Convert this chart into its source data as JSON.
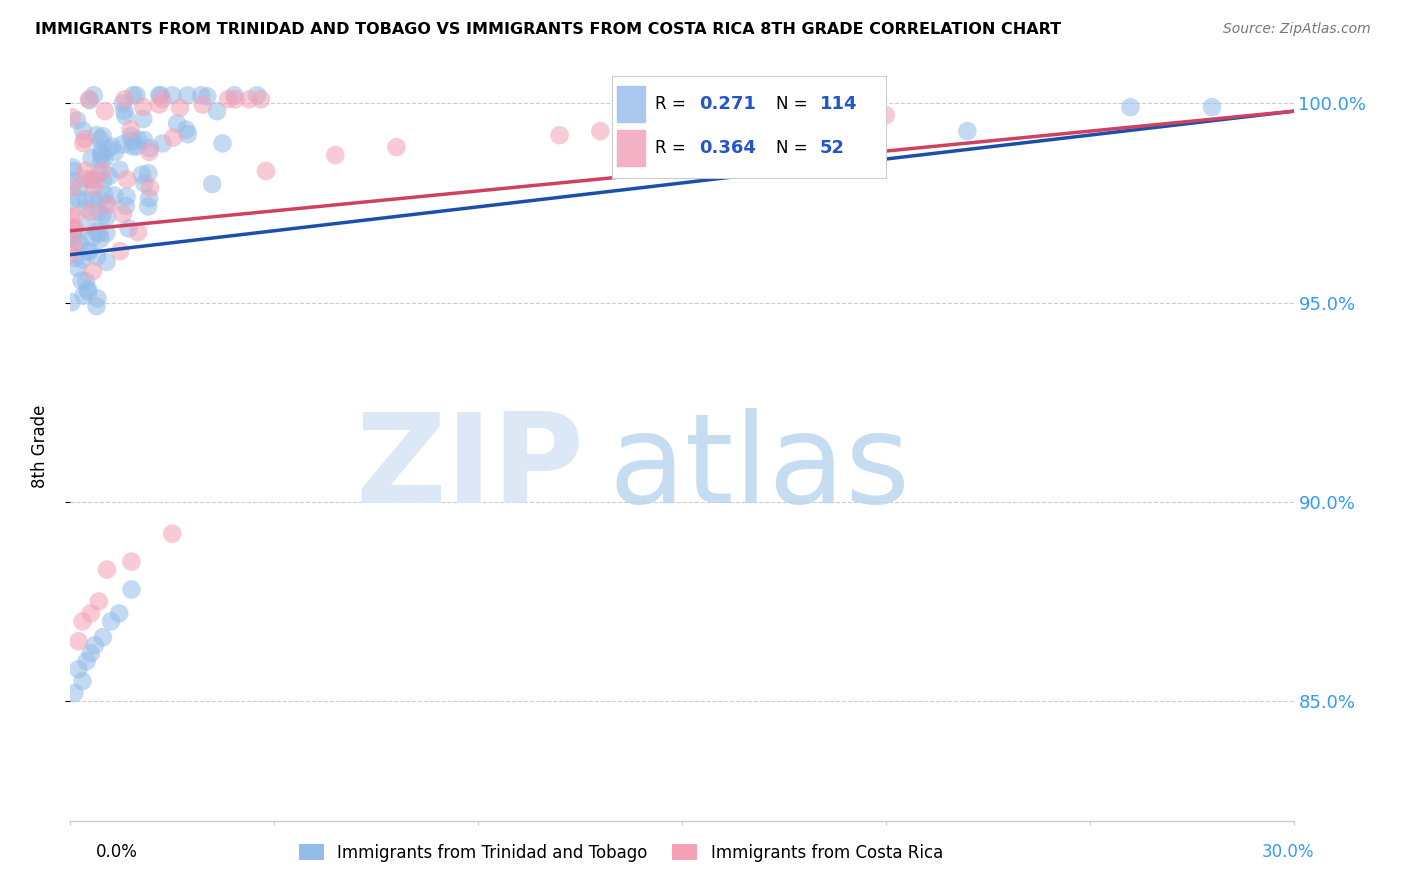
{
  "title": "IMMIGRANTS FROM TRINIDAD AND TOBAGO VS IMMIGRANTS FROM COSTA RICA 8TH GRADE CORRELATION CHART",
  "source": "Source: ZipAtlas.com",
  "ylabel": "8th Grade",
  "y_min": 0.82,
  "y_max": 1.008,
  "x_min": 0.0,
  "x_max": 0.3,
  "series1_label": "Immigrants from Trinidad and Tobago",
  "series2_label": "Immigrants from Costa Rica",
  "series1_color": "#94bce8",
  "series2_color": "#f4a0b5",
  "trendline1_color": "#1a4faa",
  "trendline2_color": "#d04060",
  "grid_color": "#cccccc",
  "y_ticks": [
    0.85,
    0.9,
    0.95,
    1.0
  ],
  "y_tick_labels": [
    "85.0%",
    "90.0%",
    "95.0%",
    "100.0%"
  ],
  "series1_R": "0.271",
  "series1_N": "114",
  "series2_R": "0.364",
  "series2_N": "52",
  "trendline1_x0": 0.0,
  "trendline1_y0": 0.962,
  "trendline1_x1": 0.3,
  "trendline1_y1": 0.998,
  "trendline2_x0": 0.0,
  "trendline2_y0": 0.968,
  "trendline2_x1": 0.3,
  "trendline2_y1": 0.998
}
